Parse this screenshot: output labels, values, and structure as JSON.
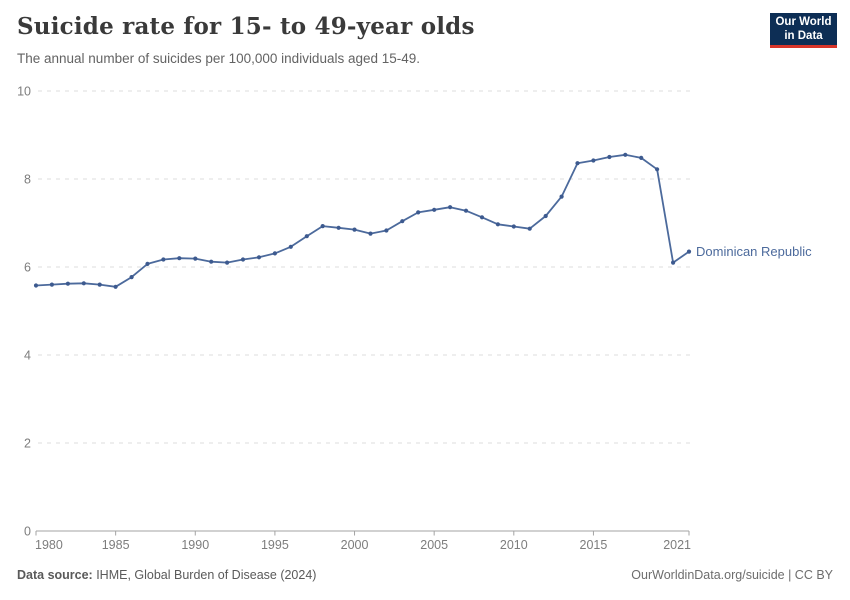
{
  "header": {
    "title": "Suicide rate for 15- to 49-year olds",
    "subtitle": "The annual number of suicides per 100,000 individuals aged 15-49."
  },
  "logo": {
    "line1": "Our World",
    "line2": "in Data",
    "bg_color": "#0d2e55",
    "accent_color": "#d8352a"
  },
  "chart_data": {
    "type": "line",
    "title": "Suicide rate for 15- to 49-year olds",
    "subtitle": "The annual number of suicides per 100,000 individuals aged 15-49.",
    "x": [
      1980,
      1981,
      1982,
      1983,
      1984,
      1985,
      1986,
      1987,
      1988,
      1989,
      1990,
      1991,
      1992,
      1993,
      1994,
      1995,
      1996,
      1997,
      1998,
      1999,
      2000,
      2001,
      2002,
      2003,
      2004,
      2005,
      2006,
      2007,
      2008,
      2009,
      2010,
      2011,
      2012,
      2013,
      2014,
      2015,
      2016,
      2017,
      2018,
      2019,
      2020,
      2021
    ],
    "series": [
      {
        "name": "Dominican Republic",
        "color": "#4c6a9c",
        "values": [
          5.58,
          5.6,
          5.62,
          5.63,
          5.6,
          5.55,
          5.77,
          6.07,
          6.17,
          6.2,
          6.19,
          6.12,
          6.1,
          6.17,
          6.22,
          6.31,
          6.46,
          6.7,
          6.93,
          6.89,
          6.85,
          6.76,
          6.83,
          7.04,
          7.24,
          7.3,
          7.36,
          7.28,
          7.13,
          6.97,
          6.92,
          6.87,
          7.16,
          7.6,
          8.36,
          8.42,
          8.5,
          8.55,
          8.48,
          8.22,
          6.1,
          6.35
        ]
      }
    ],
    "xlabel": "",
    "ylabel": "",
    "ylim": [
      0,
      10
    ],
    "yticks": [
      0,
      2,
      4,
      6,
      8,
      10
    ],
    "xticks": [
      1980,
      1985,
      1990,
      1995,
      2000,
      2005,
      2010,
      2015,
      2021
    ],
    "grid": true,
    "legend_position": "end-of-line-label"
  },
  "colors": {
    "line": "#4c6a9c",
    "marker": "#3d5a8f",
    "gridline": "#dcdcdc",
    "axis": "#a3a3a3",
    "tick_label": "#7d7d7d",
    "title": "#3a3a3a",
    "subtitle": "#636363",
    "footer_left": "#5a5a5a",
    "footer_right": "#6d6d6d",
    "logo_bg": "#0d2e55",
    "logo_accent": "#d8352a"
  },
  "footer": {
    "source_label": "Data source:",
    "source_text": " IHME, Global Burden of Disease (2024)",
    "right_text": "OurWorldinData.org/suicide | CC BY"
  }
}
